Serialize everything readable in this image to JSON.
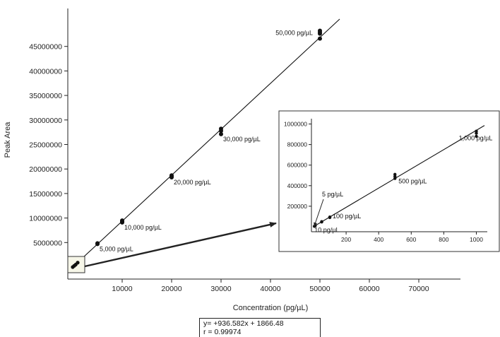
{
  "chart_data": [
    {
      "type": "scatter",
      "xlabel": "Concentration (pg/µL)",
      "ylabel": "Peak Area",
      "xlim": [
        -4000,
        78000
      ],
      "ylim": [
        -3500000,
        51500000
      ],
      "x_ticks": [
        10000,
        20000,
        30000,
        40000,
        50000,
        60000,
        70000
      ],
      "x_tick_labels": [
        "10000",
        "20000",
        "30000",
        "40000",
        "50000",
        "60000",
        "70000"
      ],
      "y_ticks": [
        5000000,
        10000000,
        15000000,
        20000000,
        25000000,
        30000000,
        35000000,
        40000000,
        45000000
      ],
      "y_tick_labels": [
        "5000000",
        "10000000",
        "15000000",
        "20000000",
        "25000000",
        "30000000",
        "35000000",
        "40000000",
        "45000000"
      ],
      "grid": false,
      "series": [
        {
          "points": [
            [
              5000,
              4700000
            ],
            [
              5000,
              4850000
            ],
            [
              10000,
              9100000
            ],
            [
              10000,
              9300000
            ],
            [
              10000,
              9500000
            ],
            [
              20000,
              18300000
            ],
            [
              20000,
              18500000
            ],
            [
              20000,
              18700000
            ],
            [
              30000,
              27100000
            ],
            [
              30000,
              27800000
            ],
            [
              30000,
              28200000
            ],
            [
              50000,
              46600000
            ],
            [
              50000,
              47600000
            ],
            [
              50000,
              47900000
            ],
            [
              50000,
              48200000
            ],
            [
              0,
              0
            ],
            [
              300,
              250000
            ],
            [
              600,
              500000
            ],
            [
              1000,
              900000
            ]
          ]
        }
      ],
      "fit_line": {
        "slope": 936.582,
        "intercept": 1866.48,
        "x_range": [
          0,
          54000
        ]
      },
      "annotations": [
        {
          "text": "5,000 pg/µL",
          "x": 5000,
          "y": 4700000
        },
        {
          "text": "10,000 pg/µL",
          "x": 10000,
          "y": 9100000
        },
        {
          "text": "20,000 pg/µL",
          "x": 20000,
          "y": 18300000
        },
        {
          "text": "30,000 pg/µL",
          "x": 30000,
          "y": 27100000
        },
        {
          "text": "50,000 pg/µL",
          "x": 50000,
          "y": 47900000
        }
      ],
      "equation": [
        "y= +936.582x + 1866.48",
        "r = 0.99974"
      ]
    },
    {
      "type": "scatter",
      "role": "inset",
      "xlim": [
        0,
        1050
      ],
      "ylim": [
        0,
        1020000
      ],
      "x_ticks": [
        200,
        400,
        600,
        800,
        1000
      ],
      "x_tick_labels": [
        "200",
        "400",
        "600",
        "800",
        "1000"
      ],
      "y_ticks": [
        200000,
        400000,
        600000,
        800000,
        1000000
      ],
      "y_tick_labels": [
        "200000",
        "400000",
        "600000",
        "800000",
        "1000000"
      ],
      "grid": false,
      "series": [
        {
          "points": [
            [
              5,
              5000
            ],
            [
              10,
              10000
            ],
            [
              10,
              12000
            ],
            [
              50,
              47000
            ],
            [
              50,
              50000
            ],
            [
              100,
              90000
            ],
            [
              100,
              95000
            ],
            [
              500,
              470000
            ],
            [
              500,
              490000
            ],
            [
              500,
              510000
            ],
            [
              1000,
              880000
            ],
            [
              1000,
              910000
            ],
            [
              1000,
              930000
            ]
          ]
        }
      ],
      "fit_line": {
        "slope": 936.582,
        "intercept": 1866.48,
        "x_range": [
          0,
          1050
        ]
      },
      "annotations": [
        {
          "text": "5 pg/µL",
          "x": 5,
          "y": 5000
        },
        {
          "text": "10 pg/µL",
          "x": 10,
          "y": 10000
        },
        {
          "text": "100 pg/µL",
          "x": 100,
          "y": 90000
        },
        {
          "text": "500 pg/µL",
          "x": 500,
          "y": 490000
        },
        {
          "text": "1,000 pg/µL",
          "x": 1000,
          "y": 910000
        }
      ]
    }
  ]
}
